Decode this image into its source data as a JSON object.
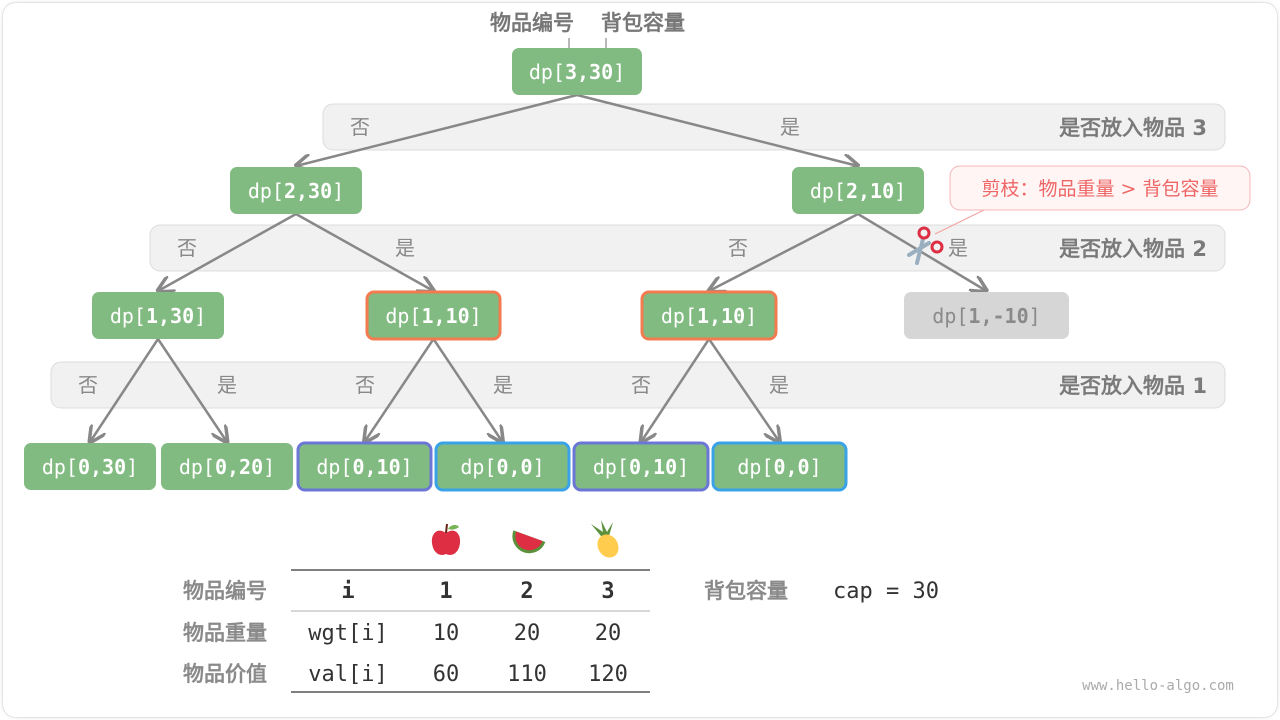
{
  "header": {
    "item_label": "物品编号",
    "capacity_label": "背包容量"
  },
  "colors": {
    "node": "#82bb81",
    "pruned_node": "#d6d6d6",
    "orange_border": "#f27b4f",
    "purple_border": "#6b77d6",
    "blue_border": "#3aa3e8",
    "band": "#f1f1f1",
    "edge": "#888888",
    "note_text": "#ee6666",
    "note_bg": "#fff5f5"
  },
  "bands": [
    {
      "label": "是否放入物品 3",
      "no": [
        "否"
      ],
      "yes": [
        "是"
      ]
    },
    {
      "label": "是否放入物品 2",
      "no": [
        "否",
        "否"
      ],
      "yes": [
        "是",
        "是"
      ]
    },
    {
      "label": "是否放入物品 1",
      "no": [
        "否",
        "否",
        "否"
      ],
      "yes": [
        "是",
        "是",
        "是"
      ]
    }
  ],
  "nodes": [
    {
      "id": "n0",
      "prefix": "dp[",
      "args": "3,30",
      "suffix": "]",
      "style": "normal"
    },
    {
      "id": "n1",
      "prefix": "dp[",
      "args": "2,30",
      "suffix": "]",
      "style": "normal"
    },
    {
      "id": "n2",
      "prefix": "dp[",
      "args": "2,10",
      "suffix": "]",
      "style": "normal"
    },
    {
      "id": "n3",
      "prefix": "dp[",
      "args": "1,30",
      "suffix": "]",
      "style": "normal"
    },
    {
      "id": "n4",
      "prefix": "dp[",
      "args": "1,10",
      "suffix": "]",
      "style": "orange"
    },
    {
      "id": "n5",
      "prefix": "dp[",
      "args": "1,10",
      "suffix": "]",
      "style": "orange"
    },
    {
      "id": "n6",
      "prefix": "dp[",
      "args": "1,-10",
      "suffix": "]",
      "style": "pruned"
    },
    {
      "id": "n7",
      "prefix": "dp[",
      "args": "0,30",
      "suffix": "]",
      "style": "normal"
    },
    {
      "id": "n8",
      "prefix": "dp[",
      "args": "0,20",
      "suffix": "]",
      "style": "normal"
    },
    {
      "id": "n9",
      "prefix": "dp[",
      "args": "0,10",
      "suffix": "]",
      "style": "purple"
    },
    {
      "id": "n10",
      "prefix": "dp[",
      "args": "0,0",
      "suffix": "]",
      "style": "blue"
    },
    {
      "id": "n11",
      "prefix": "dp[",
      "args": "0,10",
      "suffix": "]",
      "style": "purple"
    },
    {
      "id": "n12",
      "prefix": "dp[",
      "args": "0,0",
      "suffix": "]",
      "style": "blue"
    }
  ],
  "edges": [
    [
      "n0",
      "n1"
    ],
    [
      "n0",
      "n2"
    ],
    [
      "n1",
      "n3"
    ],
    [
      "n1",
      "n4"
    ],
    [
      "n2",
      "n5"
    ],
    [
      "n2",
      "n6"
    ],
    [
      "n3",
      "n7"
    ],
    [
      "n3",
      "n8"
    ],
    [
      "n4",
      "n9"
    ],
    [
      "n4",
      "n10"
    ],
    [
      "n5",
      "n11"
    ],
    [
      "n5",
      "n12"
    ]
  ],
  "prune_note": "剪枝：物品重量 > 背包容量",
  "prune_icon": "scissors-icon",
  "table": {
    "fruits": [
      "apple-icon",
      "watermelon-icon",
      "pineapple-icon"
    ],
    "row_labels": [
      "物品编号",
      "物品重量",
      "物品价值"
    ],
    "header": [
      "i",
      "1",
      "2",
      "3"
    ],
    "rows": [
      [
        "wgt[i]",
        "10",
        "20",
        "20"
      ],
      [
        "val[i]",
        "60",
        "110",
        "120"
      ]
    ]
  },
  "capacity": {
    "label": "背包容量",
    "value": "cap = 30"
  },
  "watermark": "www.hello-algo.com"
}
